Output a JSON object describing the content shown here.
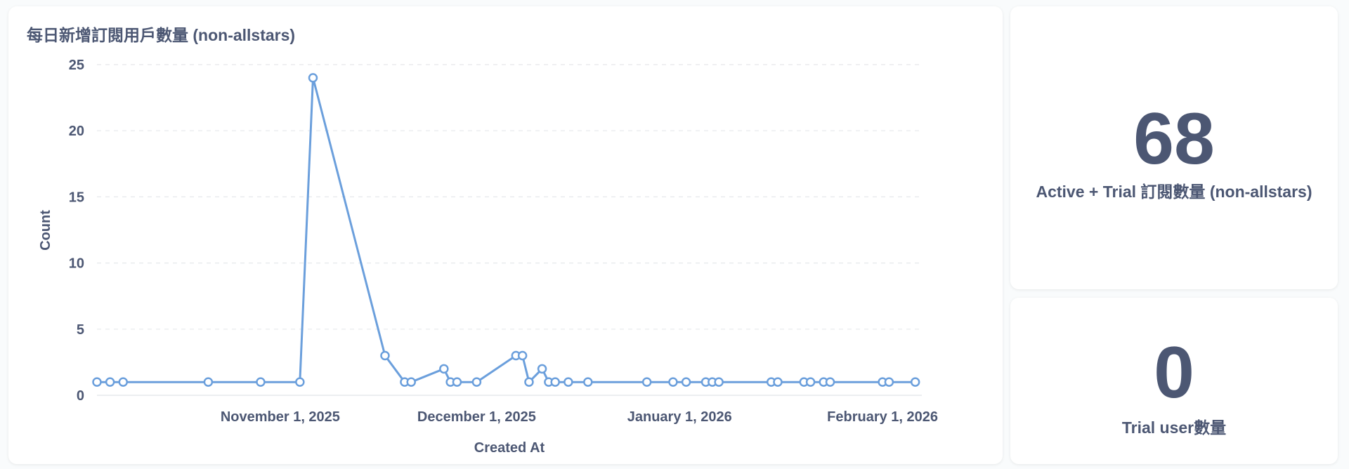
{
  "line_card": {
    "title": "每日新增訂閱用戶數量 (non-allstars)"
  },
  "active_card": {
    "value": "68",
    "label": "Active + Trial 訂閱數量 (non-allstars)"
  },
  "trial_card": {
    "value": "0",
    "label": "Trial user數量"
  },
  "colors": {
    "series": "#6b9fdc",
    "text": "#4c5773",
    "grid": "#e6e8eb"
  },
  "chart_data": {
    "type": "line",
    "title": "每日新增訂閱用戶數量 (non-allstars)",
    "xlabel": "Created At",
    "ylabel": "Count",
    "ylim": [
      0,
      25
    ],
    "yticks": [
      0,
      5,
      10,
      15,
      20,
      25
    ],
    "xlim": [
      "2025-10-04",
      "2026-02-07"
    ],
    "xticks": [
      {
        "date": "2025-11-01",
        "label": "November 1, 2025"
      },
      {
        "date": "2025-12-01",
        "label": "December 1, 2025"
      },
      {
        "date": "2026-01-01",
        "label": "January 1, 2026"
      },
      {
        "date": "2026-02-01",
        "label": "February 1, 2026"
      }
    ],
    "grid": true,
    "series": [
      {
        "name": "",
        "points": [
          {
            "x": "2025-10-04",
            "y": 1
          },
          {
            "x": "2025-10-06",
            "y": 1
          },
          {
            "x": "2025-10-08",
            "y": 1
          },
          {
            "x": "2025-10-21",
            "y": 1
          },
          {
            "x": "2025-10-29",
            "y": 1
          },
          {
            "x": "2025-11-04",
            "y": 1
          },
          {
            "x": "2025-11-06",
            "y": 24
          },
          {
            "x": "2025-11-17",
            "y": 3
          },
          {
            "x": "2025-11-20",
            "y": 1
          },
          {
            "x": "2025-11-21",
            "y": 1
          },
          {
            "x": "2025-11-26",
            "y": 2
          },
          {
            "x": "2025-11-27",
            "y": 1
          },
          {
            "x": "2025-11-28",
            "y": 1
          },
          {
            "x": "2025-12-01",
            "y": 1
          },
          {
            "x": "2025-12-07",
            "y": 3
          },
          {
            "x": "2025-12-08",
            "y": 3
          },
          {
            "x": "2025-12-09",
            "y": 1
          },
          {
            "x": "2025-12-11",
            "y": 2
          },
          {
            "x": "2025-12-12",
            "y": 1
          },
          {
            "x": "2025-12-13",
            "y": 1
          },
          {
            "x": "2025-12-15",
            "y": 1
          },
          {
            "x": "2025-12-18",
            "y": 1
          },
          {
            "x": "2025-12-27",
            "y": 1
          },
          {
            "x": "2025-12-31",
            "y": 1
          },
          {
            "x": "2026-01-02",
            "y": 1
          },
          {
            "x": "2026-01-05",
            "y": 1
          },
          {
            "x": "2026-01-06",
            "y": 1
          },
          {
            "x": "2026-01-07",
            "y": 1
          },
          {
            "x": "2026-01-15",
            "y": 1
          },
          {
            "x": "2026-01-16",
            "y": 1
          },
          {
            "x": "2026-01-20",
            "y": 1
          },
          {
            "x": "2026-01-21",
            "y": 1
          },
          {
            "x": "2026-01-23",
            "y": 1
          },
          {
            "x": "2026-01-24",
            "y": 1
          },
          {
            "x": "2026-02-01",
            "y": 1
          },
          {
            "x": "2026-02-02",
            "y": 1
          },
          {
            "x": "2026-02-06",
            "y": 1
          }
        ]
      }
    ]
  }
}
